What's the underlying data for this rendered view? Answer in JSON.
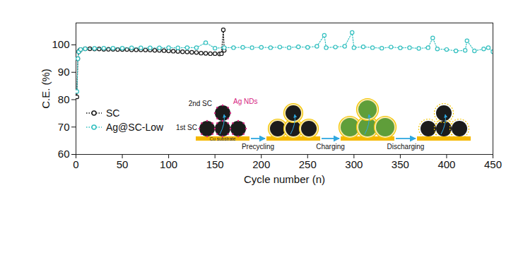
{
  "chart_data": {
    "type": "line",
    "x_label": "Cycle number (n)",
    "y_label": "C.E. (%)",
    "xlim": [
      0,
      450
    ],
    "xticks": [
      0,
      50,
      100,
      150,
      200,
      250,
      300,
      350,
      400,
      450
    ],
    "ylim": [
      60,
      108
    ],
    "yticks": [
      60,
      70,
      80,
      90,
      100
    ],
    "legend": "left",
    "series": [
      {
        "name": "SC",
        "color": "#1a1a1a",
        "marker": "circle",
        "line_style": "dotted",
        "x": [
          1,
          2,
          3,
          4,
          5,
          10,
          15,
          20,
          25,
          30,
          35,
          40,
          45,
          50,
          55,
          60,
          65,
          70,
          75,
          80,
          85,
          90,
          95,
          100,
          105,
          110,
          115,
          120,
          125,
          130,
          135,
          140,
          145,
          150,
          155,
          157,
          159,
          160
        ],
        "values": [
          81,
          95,
          97.5,
          98,
          98.3,
          98.6,
          98.6,
          98.5,
          98.5,
          98.4,
          98.4,
          98.4,
          98.3,
          98.3,
          98.3,
          98.2,
          98.2,
          98.2,
          98.1,
          98.1,
          98.0,
          98.0,
          97.9,
          97.8,
          97.7,
          97.6,
          97.5,
          97.4,
          97.3,
          97.2,
          97.0,
          96.9,
          96.8,
          96.8,
          96.7,
          96.8,
          105.5,
          98
        ]
      },
      {
        "name": "Ag@SC-Low",
        "color": "#33c0c0",
        "marker": "circle",
        "line_style": "dotted",
        "x": [
          1,
          2,
          3,
          5,
          10,
          20,
          30,
          40,
          50,
          60,
          70,
          80,
          90,
          100,
          110,
          120,
          130,
          140,
          150,
          160,
          170,
          180,
          190,
          200,
          210,
          220,
          230,
          240,
          250,
          260,
          268,
          270,
          280,
          290,
          298,
          300,
          310,
          320,
          330,
          340,
          350,
          360,
          370,
          380,
          385,
          390,
          400,
          410,
          420,
          422,
          430,
          440,
          445,
          450
        ],
        "values": [
          83,
          95,
          97.5,
          98.3,
          98.6,
          98.7,
          98.8,
          98.8,
          98.8,
          98.9,
          98.9,
          98.9,
          98.9,
          99,
          98.9,
          99,
          99,
          100.8,
          98.8,
          99,
          99,
          99.1,
          99,
          99.1,
          99,
          99.2,
          99,
          99.3,
          99.1,
          99.5,
          103.5,
          99,
          99.2,
          99.5,
          104.5,
          99,
          99.3,
          99,
          98.8,
          99.2,
          98.9,
          99,
          98.7,
          99,
          102.5,
          98.5,
          98.3,
          97.8,
          98,
          101.5,
          97.8,
          98.5,
          99,
          97.5
        ]
      }
    ],
    "annotations": {
      "inset": {
        "labels": {
          "second_sc": "2nd SC",
          "ag_nds": "Ag NDs",
          "first_sc": "1st SC",
          "substrate": "Cu substrate"
        },
        "steps": [
          "Precycling",
          "Charging",
          "Discharging"
        ]
      }
    }
  }
}
